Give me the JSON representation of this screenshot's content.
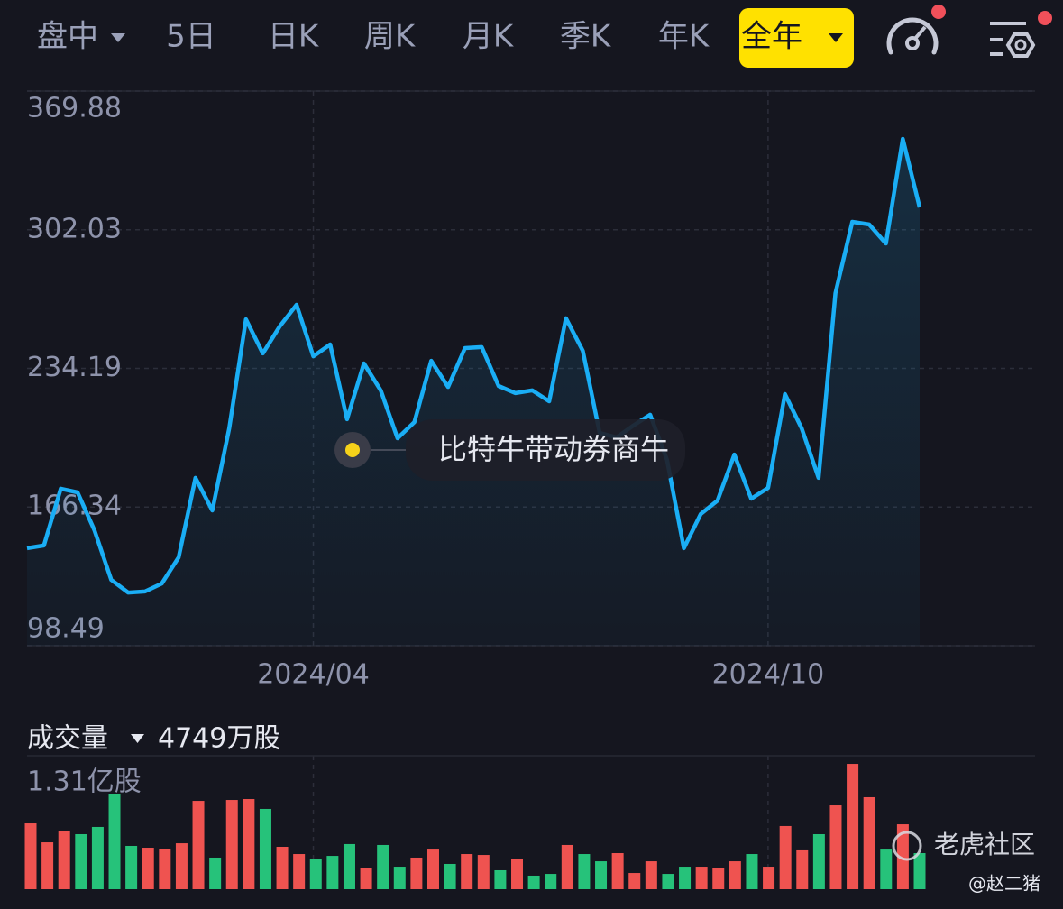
{
  "toolbar": {
    "tabs": [
      "盘中",
      "5日",
      "日K",
      "周K",
      "月K",
      "季K",
      "年K",
      "全年"
    ],
    "selected": 7
  },
  "chart_data": [
    {
      "type": "line",
      "color": "#1aaef5",
      "grid": true,
      "annotation": "比特牛带动券商牛",
      "categories": [
        null,
        null,
        null,
        null,
        null,
        null,
        null,
        null,
        null,
        null,
        null,
        null,
        null,
        null,
        null,
        null,
        null,
        "2024/04",
        null,
        null,
        null,
        null,
        null,
        null,
        null,
        null,
        null,
        null,
        null,
        null,
        null,
        null,
        null,
        null,
        null,
        null,
        null,
        null,
        null,
        null,
        null,
        null,
        null,
        null,
        "2024/10",
        null,
        null,
        null,
        null,
        null,
        null,
        null,
        null,
        null
      ],
      "values": [
        146.2,
        147.5,
        175.3,
        173.5,
        155.0,
        130.7,
        124.5,
        125.0,
        128.9,
        141.7,
        180.6,
        164.7,
        204.8,
        258.2,
        241.5,
        254.7,
        265.3,
        240.1,
        245.9,
        209.3,
        236.6,
        223.4,
        200.0,
        207.9,
        237.9,
        225.1,
        244.1,
        244.6,
        225.6,
        222.1,
        223.4,
        218.1,
        258.7,
        242.8,
        202.6,
        200.4,
        206.2,
        211.5,
        189.4,
        146.2,
        162.9,
        169.5,
        192.0,
        170.4,
        175.7,
        221.6,
        204.8,
        180.6,
        271.0,
        305.9,
        304.6,
        295.3,
        346.5,
        313.0
      ],
      "ylim": [
        98.49,
        369.88
      ],
      "yticks": [
        369.88,
        302.03,
        234.19,
        166.34,
        98.49
      ]
    },
    {
      "type": "bar",
      "title": "成交量",
      "subtitle": "4749万股",
      "values": [
        0.646,
        0.46,
        0.575,
        0.54,
        0.611,
        0.938,
        0.425,
        0.407,
        0.398,
        0.451,
        0.867,
        0.31,
        0.876,
        0.885,
        0.788,
        0.416,
        0.345,
        0.301,
        0.327,
        0.443,
        0.212,
        0.434,
        0.221,
        0.31,
        0.389,
        0.248,
        0.345,
        0.336,
        0.186,
        0.301,
        0.133,
        0.15,
        0.434,
        0.345,
        0.274,
        0.354,
        0.159,
        0.274,
        0.15,
        0.221,
        0.221,
        0.204,
        0.274,
        0.345,
        0.221,
        0.62,
        0.381,
        0.54,
        0.823,
        1.23,
        0.903,
        0.389,
        0.637,
        0.354
      ],
      "colors": [
        "#ef5350",
        "#ef5350",
        "#ef5350",
        "#26c27a",
        "#26c27a",
        "#26c27a",
        "#26c27a",
        "#ef5350",
        "#ef5350",
        "#ef5350",
        "#ef5350",
        "#26c27a",
        "#ef5350",
        "#ef5350",
        "#26c27a",
        "#ef5350",
        "#ef5350",
        "#26c27a",
        "#26c27a",
        "#26c27a",
        "#ef5350",
        "#26c27a",
        "#26c27a",
        "#ef5350",
        "#ef5350",
        "#26c27a",
        "#ef5350",
        "#ef5350",
        "#26c27a",
        "#ef5350",
        "#26c27a",
        "#26c27a",
        "#ef5350",
        "#26c27a",
        "#26c27a",
        "#ef5350",
        "#ef5350",
        "#ef5350",
        "#26c27a",
        "#26c27a",
        "#ef5350",
        "#ef5350",
        "#ef5350",
        "#26c27a",
        "#ef5350",
        "#ef5350",
        "#ef5350",
        "#26c27a",
        "#ef5350",
        "#ef5350",
        "#ef5350",
        "#26c27a",
        "#ef5350",
        "#26c27a"
      ],
      "ylim": [
        0,
        1.31
      ],
      "yticks": [
        {
          "value": 1.31,
          "label": "1.31亿股"
        }
      ]
    }
  ],
  "watermark": {
    "brand": "老虎社区",
    "author": "@赵二猪"
  }
}
